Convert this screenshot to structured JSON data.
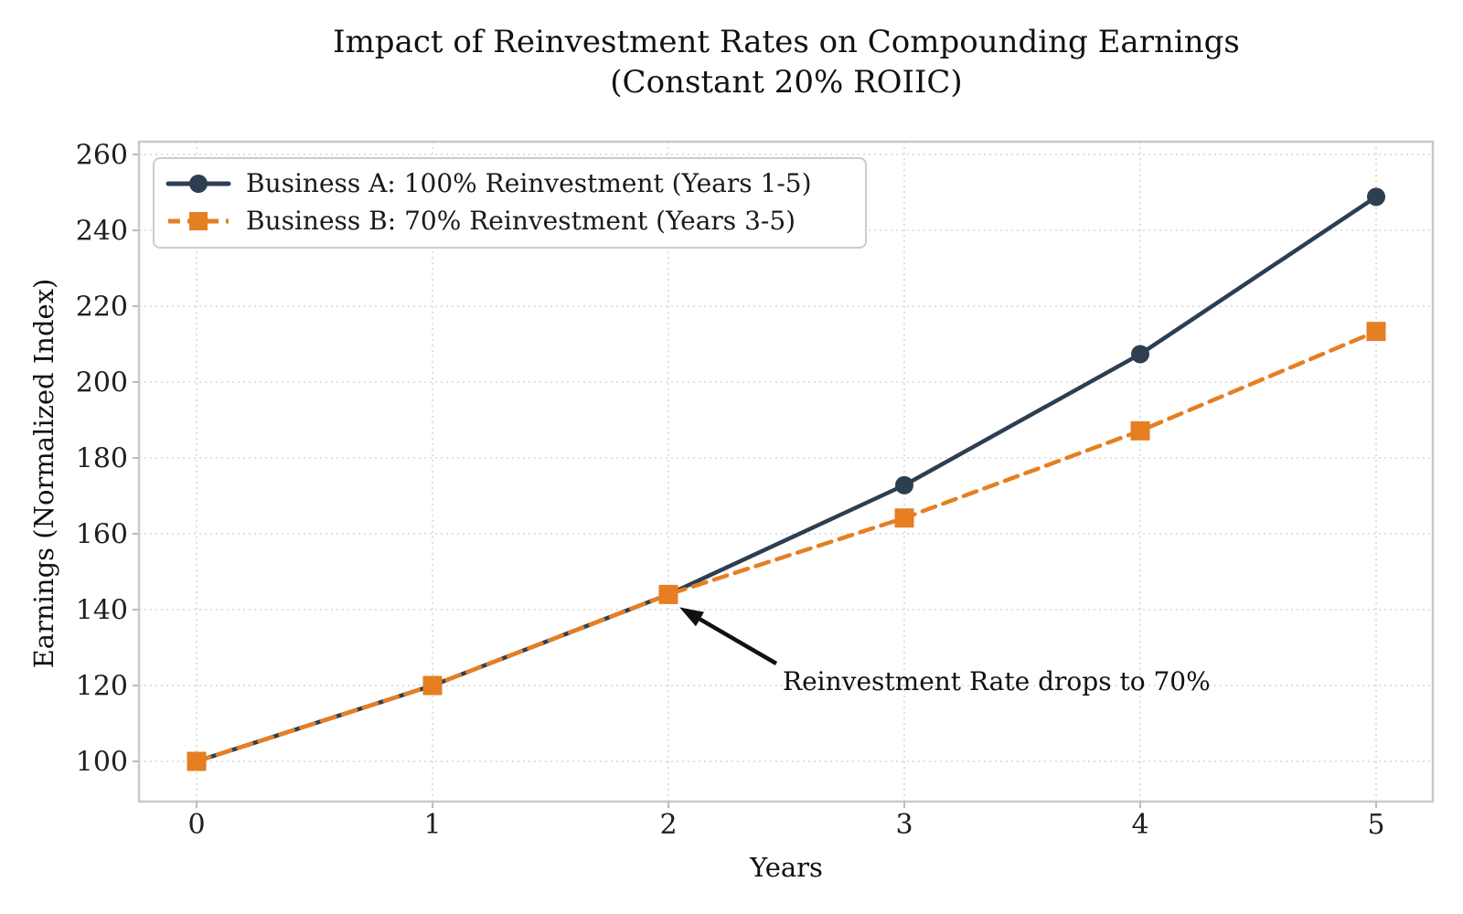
{
  "title": {
    "line1": "Impact of Reinvestment Rates on Compounding Earnings",
    "line2": "(Constant 20% ROIIC)"
  },
  "axis": {
    "xlabel": "Years",
    "ylabel": "Earnings (Normalized Index)"
  },
  "colors": {
    "series_a": "#2d3e50",
    "series_b": "#e67e22",
    "grid": "#d6d6d6",
    "spine": "#c9c9c9",
    "tick": "#bbbbbb",
    "tick_label": "#1f1f1f",
    "annotation_arrow": "#111111",
    "legend_border": "#cccccc"
  },
  "chart_data": {
    "type": "line",
    "x": [
      0,
      1,
      2,
      3,
      4,
      5
    ],
    "x_tick_labels": [
      "0",
      "1",
      "2",
      "3",
      "4",
      "5"
    ],
    "y_ticks": [
      100,
      120,
      140,
      160,
      180,
      200,
      220,
      240,
      260
    ],
    "series": [
      {
        "name": "Business A: 100% Reinvestment (Years 1-5)",
        "values": [
          100,
          120,
          144,
          172.8,
          207.36,
          248.83
        ],
        "color": "#2d3e50",
        "line_style": "solid",
        "marker": "circle"
      },
      {
        "name": "Business B: 70% Reinvestment (Years 3-5)",
        "values": [
          100,
          120,
          144,
          164.16,
          187.14,
          213.34
        ],
        "color": "#e67e22",
        "line_style": "dashed",
        "marker": "square"
      }
    ],
    "title": "Impact of Reinvestment Rates on Compounding Earnings (Constant 20% ROIIC)",
    "xlabel": "Years",
    "ylabel": "Earnings (Normalized Index)",
    "xlim": [
      -0.25,
      5.25
    ],
    "ylim": [
      89,
      264
    ],
    "grid": true,
    "legend_position": "upper left",
    "annotation": {
      "text": "Reinvestment Rate drops to 70%",
      "xy": [
        2,
        144
      ]
    }
  }
}
